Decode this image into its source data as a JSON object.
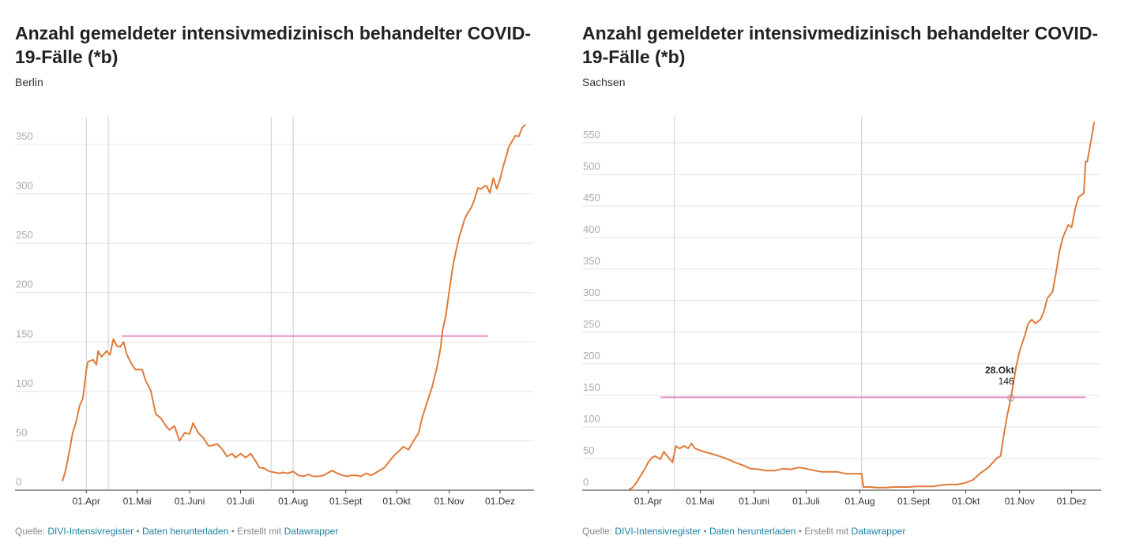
{
  "chart_data": [
    {
      "type": "line",
      "title": "Anzahl gemeldeter intensivmedizinisch behandelter COVID-19-Fälle (*b)",
      "subtitle": "Berlin",
      "x": [
        78,
        80,
        82,
        84,
        86,
        88,
        90,
        92,
        93,
        96,
        98,
        99,
        101,
        104,
        106,
        108,
        110,
        112,
        114,
        116,
        119,
        121,
        125,
        127,
        130,
        133,
        136,
        139,
        141,
        144,
        147,
        150,
        153,
        155,
        158,
        161,
        164,
        166,
        169,
        172,
        175,
        178,
        180,
        183,
        186,
        189,
        192,
        194,
        197,
        200,
        203,
        206,
        208,
        211,
        214,
        217,
        220,
        223,
        226,
        229,
        232,
        234,
        237,
        240,
        243,
        246,
        248,
        251,
        254,
        257,
        260,
        262,
        265,
        268,
        271,
        274,
        276,
        279,
        282,
        285,
        288,
        290,
        293,
        296,
        299,
        301,
        302,
        304,
        306,
        308,
        310,
        312,
        314,
        315,
        317,
        319,
        321,
        323,
        325,
        327,
        328,
        330,
        332,
        334,
        336,
        338,
        340,
        341,
        343,
        345,
        347,
        349,
        351
      ],
      "values": [
        9,
        21,
        39,
        58,
        69,
        85,
        93,
        121,
        130,
        132,
        127,
        141,
        135,
        141,
        137,
        153,
        146,
        145,
        150,
        137,
        127,
        122,
        122,
        111,
        101,
        77,
        73,
        65,
        61,
        65,
        50,
        58,
        57,
        68,
        58,
        53,
        45,
        45,
        47,
        42,
        34,
        37,
        33,
        37,
        33,
        37,
        29,
        23,
        22,
        19,
        18,
        17,
        18,
        17,
        19,
        15,
        14,
        16,
        14,
        14,
        15,
        17,
        20,
        17,
        15,
        14,
        15,
        15,
        14,
        17,
        15,
        17,
        20,
        23,
        30,
        36,
        39,
        44,
        41,
        50,
        58,
        73,
        89,
        105,
        126,
        145,
        161,
        177,
        201,
        225,
        242,
        257,
        268,
        274,
        281,
        286,
        295,
        306,
        305,
        308,
        308,
        301,
        316,
        305,
        315,
        329,
        340,
        347,
        353,
        359,
        358,
        367,
        370
      ],
      "color": "#e07b39",
      "xlim": [
        50,
        356
      ],
      "ylim": [
        0,
        378
      ],
      "xticks": [
        {
          "value": 92,
          "label": "01.Apr"
        },
        {
          "value": 122,
          "label": "01.Mai"
        },
        {
          "value": 153,
          "label": "01.Juni"
        },
        {
          "value": 183,
          "label": "01.Juli"
        },
        {
          "value": 214,
          "label": "01.Aug"
        },
        {
          "value": 245,
          "label": "01.Sept"
        },
        {
          "value": 275,
          "label": "01.Okt"
        },
        {
          "value": 306,
          "label": "01.Nov"
        },
        {
          "value": 336,
          "label": "01.Dez"
        }
      ],
      "yticks": [
        0,
        50,
        100,
        150,
        200,
        250,
        300,
        350
      ],
      "grid": true,
      "vlines": [
        92,
        105,
        201,
        214
      ],
      "hline": {
        "y": 156,
        "x_from": 113,
        "x_to": 329,
        "color": "#e68fc9"
      },
      "source_label": "Quelle:",
      "source": "DIVI-Intensivregister",
      "download": "Daten herunterladen",
      "credit": "Erstellt mit",
      "tool": "Datawrapper"
    },
    {
      "type": "line",
      "title": "Anzahl gemeldeter intensivmedizinisch behandelter COVID-19-Fälle (*b)",
      "subtitle": "Sachsen",
      "x": [
        81,
        83,
        85,
        87,
        90,
        92,
        94,
        96,
        99,
        101,
        103,
        106,
        107,
        108,
        110,
        113,
        115,
        117,
        119,
        124,
        128,
        133,
        138,
        142,
        147,
        151,
        156,
        160,
        165,
        170,
        174,
        179,
        183,
        188,
        192,
        197,
        201,
        206,
        210,
        215,
        216,
        220,
        224,
        229,
        233,
        238,
        242,
        247,
        252,
        256,
        261,
        265,
        270,
        274,
        279,
        283,
        288,
        293,
        295,
        297,
        299,
        301,
        304,
        306,
        309,
        311,
        313,
        315,
        318,
        320,
        322,
        325,
        327,
        329,
        331,
        334,
        336,
        338,
        340,
        343,
        344,
        345,
        347,
        349
      ],
      "values": [
        1,
        4,
        11,
        20,
        33,
        44,
        51,
        54,
        49,
        61,
        54,
        44,
        58,
        70,
        66,
        70,
        66,
        74,
        66,
        61,
        58,
        54,
        49,
        44,
        39,
        34,
        33,
        31,
        31,
        34,
        33,
        36,
        34,
        31,
        29,
        29,
        29,
        26,
        26,
        26,
        5,
        5,
        4,
        4,
        5,
        5,
        5,
        6,
        6,
        6,
        8,
        9,
        9,
        11,
        16,
        26,
        36,
        51,
        54,
        89,
        120,
        146,
        195,
        220,
        245,
        264,
        270,
        264,
        270,
        283,
        304,
        314,
        345,
        379,
        401,
        420,
        416,
        445,
        464,
        470,
        520,
        520,
        551,
        583
      ],
      "color": "#e07b39",
      "xlim": [
        54,
        353
      ],
      "ylim": [
        0,
        591
      ],
      "xticks": [
        {
          "value": 92,
          "label": "01.Apr"
        },
        {
          "value": 122,
          "label": "01.Mai"
        },
        {
          "value": 153,
          "label": "01.Juni"
        },
        {
          "value": 183,
          "label": "01.Juli"
        },
        {
          "value": 214,
          "label": "01.Aug"
        },
        {
          "value": 245,
          "label": "01.Sept"
        },
        {
          "value": 275,
          "label": "01.Okt"
        },
        {
          "value": 306,
          "label": "01.Nov"
        },
        {
          "value": 336,
          "label": "01.Dez"
        }
      ],
      "yticks": [
        0,
        50,
        100,
        150,
        200,
        250,
        300,
        350,
        400,
        450,
        500,
        550
      ],
      "grid": true,
      "vlines": [
        107,
        215
      ],
      "hline": {
        "y": 147,
        "x_from": 99,
        "x_to": 344,
        "color": "#e68fc9"
      },
      "annotation": {
        "x": 301,
        "y": 146,
        "date_label": "28.Okt"
      },
      "source_label": "Quelle:",
      "source": "DIVI-Intensivregister",
      "download": "Daten herunterladen",
      "credit": "Erstellt mit",
      "tool": "Datawrapper"
    }
  ]
}
